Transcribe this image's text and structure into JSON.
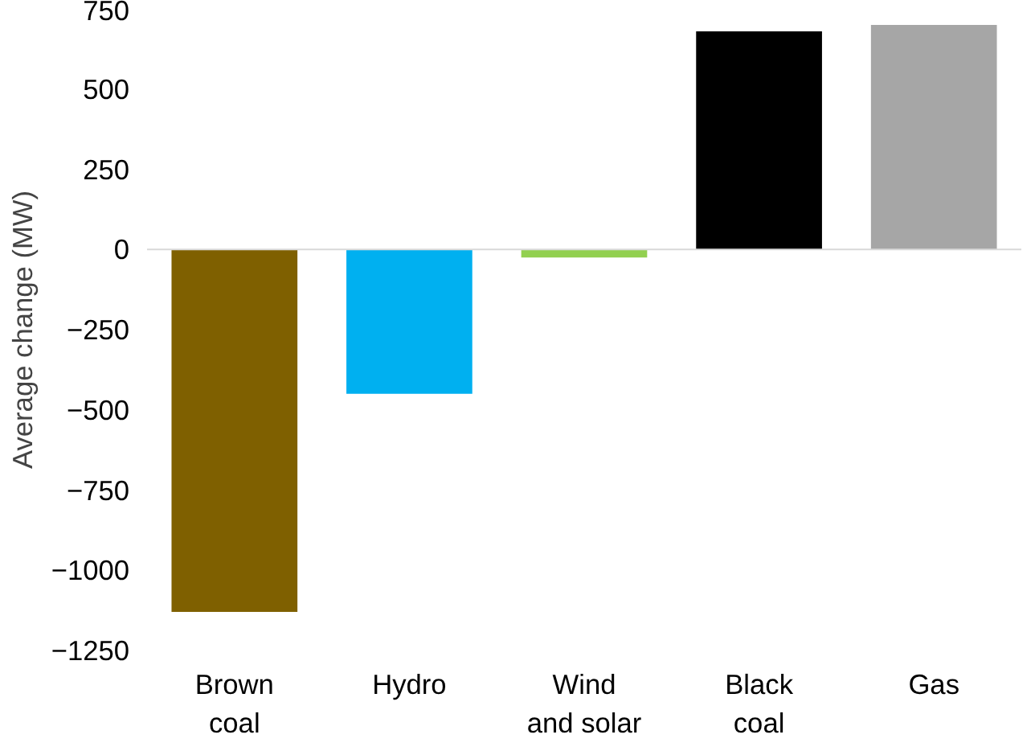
{
  "chart_data": {
    "type": "bar",
    "ylabel": "Average change (MW)",
    "categories": [
      "Brown\ncoal",
      "Hydro",
      "Wind\nand solar",
      "Black\ncoal",
      "Gas"
    ],
    "values": [
      -1130,
      -450,
      -25,
      680,
      700
    ],
    "colors": [
      "#7f6000",
      "#00b0f0",
      "#92d050",
      "#000000",
      "#a6a6a6"
    ],
    "ylim": [
      -1250,
      750
    ],
    "yticks": [
      -1250,
      -1000,
      -750,
      -500,
      -250,
      0,
      250,
      500,
      750
    ]
  }
}
